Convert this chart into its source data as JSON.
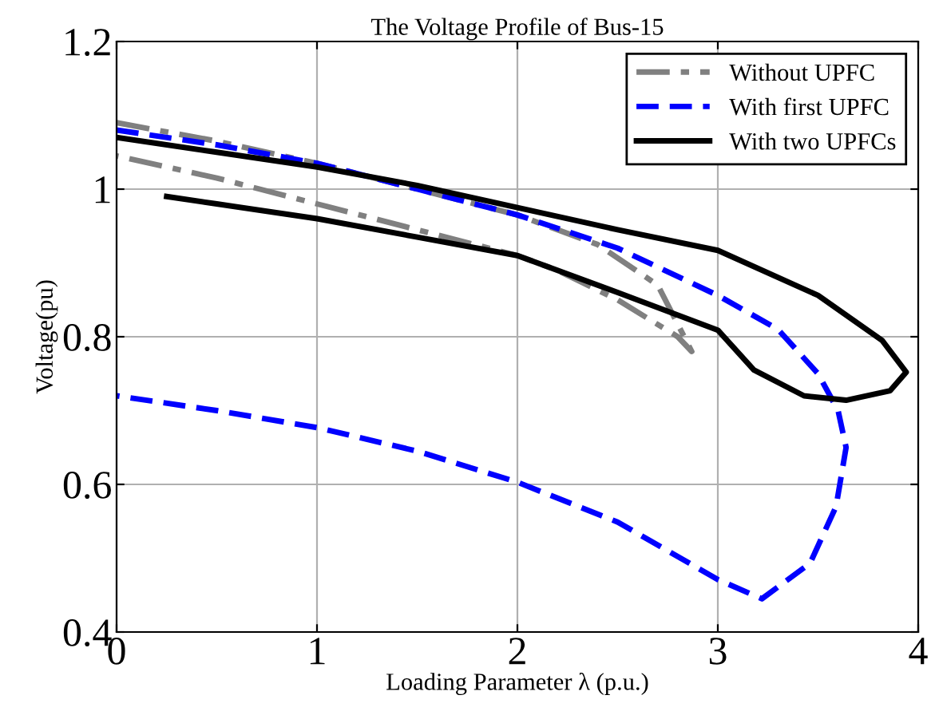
{
  "chart_data": {
    "type": "line",
    "title": "The Voltage Profile of Bus-15",
    "xlabel": "Loading Parameter λ (p.u.)",
    "ylabel": "Voltage(pu)",
    "xlim": [
      0,
      4
    ],
    "ylim": [
      0.4,
      1.2
    ],
    "xticks": [
      0,
      1,
      2,
      3,
      4
    ],
    "yticks": [
      0.4,
      0.6,
      0.8,
      1,
      1.2
    ],
    "grid": true,
    "legend": "top right",
    "marker": "none",
    "series": [
      {
        "name": "Without UPFC",
        "color": "#808080",
        "line_style": "dashdot",
        "x": [
          0,
          0.5,
          1,
          1.5,
          2,
          2.4,
          2.7,
          2.87,
          2.8,
          2.5,
          2.2,
          2,
          1.5,
          1,
          0.5,
          0
        ],
        "values": [
          1.09,
          1.065,
          1.035,
          1.0,
          0.965,
          0.925,
          0.87,
          0.78,
          0.8,
          0.85,
          0.89,
          0.91,
          0.945,
          0.98,
          1.015,
          1.045
        ]
      },
      {
        "name": "With first UPFC",
        "color": "#0000ff",
        "line_style": "dashed",
        "x": [
          0,
          0.5,
          1,
          1.5,
          2,
          2.5,
          3,
          3.3,
          3.5,
          3.6,
          3.64,
          3.59,
          3.46,
          3.22,
          3.0,
          2.5,
          2,
          1.5,
          1,
          0.5,
          0
        ],
        "values": [
          1.08,
          1.06,
          1.035,
          1.0,
          0.965,
          0.92,
          0.856,
          0.81,
          0.75,
          0.7,
          0.65,
          0.57,
          0.493,
          0.445,
          0.471,
          0.549,
          0.603,
          0.645,
          0.677,
          0.7,
          0.72
        ]
      },
      {
        "name": "With two UPFCs",
        "color": "#000000",
        "line_style": "solid",
        "x": [
          0,
          0.5,
          1,
          1.5,
          2,
          2.5,
          3,
          3.5,
          3.82,
          3.94,
          3.86,
          3.64,
          3.43,
          3.18,
          3.0,
          2.5,
          2,
          1.5,
          1,
          0.5,
          0.25
        ],
        "values": [
          1.07,
          1.05,
          1.03,
          1.005,
          0.975,
          0.945,
          0.917,
          0.856,
          0.795,
          0.752,
          0.727,
          0.714,
          0.72,
          0.755,
          0.809,
          0.86,
          0.91,
          0.935,
          0.96,
          0.98,
          0.99
        ]
      }
    ]
  }
}
